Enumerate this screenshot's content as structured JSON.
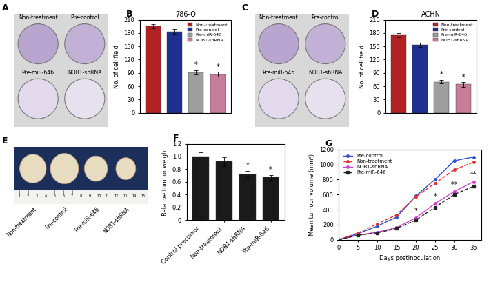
{
  "images": [
    {
      "panel": "A",
      "labels": [
        "Non-treatment",
        "Pre-control",
        "Pre-miR-646",
        "NOB1-shRNA"
      ]
    },
    {
      "panel": "C",
      "labels": [
        "Non-treatment",
        "Pre-control",
        "Pre-miR-646",
        "NOB1-shRNA"
      ]
    },
    {
      "panel": "E",
      "labels": [
        "Non-treatment",
        "Pre-control",
        "Pre-miR-646",
        "NOB1-shRNA"
      ],
      "ruler": [
        1,
        2,
        3,
        4,
        5,
        6,
        7,
        8,
        9,
        10,
        11,
        12,
        13,
        14,
        15
      ]
    }
  ],
  "chart_data": [
    {
      "panel": "B",
      "type": "bar",
      "title": "786-O",
      "categories": [
        "Non-treatment",
        "Pre-control",
        "Pre-miR-646",
        "NOB1-shRNA"
      ],
      "values": [
        195,
        183,
        91,
        87
      ],
      "errors": [
        5,
        6,
        5,
        5
      ],
      "colors": [
        "#b22222",
        "#1f2f8f",
        "#9e9e9e",
        "#c77c9a"
      ],
      "ylabel": "No. of cell field",
      "ylim": [
        0,
        210
      ],
      "yticks": [
        0,
        30,
        60,
        90,
        120,
        150,
        180,
        210
      ],
      "legend": "upper right",
      "tick_labels": "y",
      "annotations": [
        {
          "text": "*",
          "category": "Pre-miR-646"
        },
        {
          "text": "*",
          "category": "NOB1-shRNA"
        }
      ]
    },
    {
      "panel": "D",
      "type": "bar",
      "title": "ACHN",
      "categories": [
        "Non-treatment",
        "Pre-control",
        "Pre-miR-646",
        "NOB1-shRNA"
      ],
      "values": [
        175,
        153,
        70,
        64
      ],
      "errors": [
        5,
        5,
        4,
        5
      ],
      "colors": [
        "#b22222",
        "#1f2f8f",
        "#9e9e9e",
        "#c77c9a"
      ],
      "ylabel": "No. of cell field",
      "ylim": [
        0,
        210
      ],
      "yticks": [
        0,
        30,
        60,
        90,
        120,
        150,
        180,
        210
      ],
      "legend": "upper right",
      "tick_labels": "y",
      "annotations": [
        {
          "text": "*",
          "category": "Pre-miR-646"
        },
        {
          "text": "*",
          "category": "NOB1-shRNA"
        }
      ]
    },
    {
      "panel": "F",
      "type": "bar",
      "categories": [
        "Control precursor",
        "Non-treatment",
        "NOB1-shRNA",
        "Pre-miR-646"
      ],
      "values": [
        1.0,
        0.92,
        0.72,
        0.67
      ],
      "errors": [
        0.06,
        0.07,
        0.05,
        0.04
      ],
      "color": "#1a1a1a",
      "ylabel": "Relative tumour weight",
      "ylim": [
        0,
        1.2
      ],
      "yticks": [
        0,
        0.2,
        0.4,
        0.6,
        0.8,
        {
          "value": 1,
          "label": "1.0"
        },
        1.2
      ],
      "annotations": [
        {
          "text": "*",
          "category": "NOB1-shRNA"
        },
        {
          "text": "*",
          "category": "Pre-miR-646"
        }
      ]
    },
    {
      "panel": "G",
      "type": "line",
      "x": [
        0,
        5,
        10,
        15,
        20,
        25,
        30,
        35
      ],
      "series": [
        {
          "name": "Pre-control",
          "color": "#2f4fd0",
          "marker": "circle",
          "line_style": "solid",
          "values": [
            0,
            80,
            180,
            300,
            580,
            800,
            1050,
            1100
          ]
        },
        {
          "name": "Non-treatment",
          "color": "#e03030",
          "marker": "circle",
          "line_style": "dashed",
          "values": [
            0,
            90,
            210,
            330,
            570,
            750,
            930,
            1030
          ]
        },
        {
          "name": "NOB1-shRNA",
          "color": "#d040d0",
          "marker": "circle",
          "line_style": "solid",
          "values": [
            0,
            60,
            100,
            160,
            290,
            480,
            640,
            770
          ]
        },
        {
          "name": "Pre-miR-646",
          "color": "#222222",
          "marker": "square",
          "line_style": "dashed",
          "values": [
            0,
            60,
            90,
            150,
            260,
            430,
            600,
            710
          ]
        }
      ],
      "xlabel": "Days postinoculation",
      "ylabel": "Mean tumour volume (mm³)",
      "xlim": [
        0,
        37
      ],
      "xticks": [
        0,
        5,
        10,
        15,
        20,
        25,
        30,
        35
      ],
      "ylim": [
        0,
        1200
      ],
      "yticks": [
        0,
        200,
        400,
        600,
        800,
        1000,
        1200
      ],
      "legend": "upper left",
      "annotations": [
        {
          "text": "*",
          "x": 20
        },
        {
          "text": "*",
          "x": 25
        },
        {
          "text": "**",
          "x": 30
        },
        {
          "text": "**",
          "x": 35
        }
      ]
    }
  ]
}
